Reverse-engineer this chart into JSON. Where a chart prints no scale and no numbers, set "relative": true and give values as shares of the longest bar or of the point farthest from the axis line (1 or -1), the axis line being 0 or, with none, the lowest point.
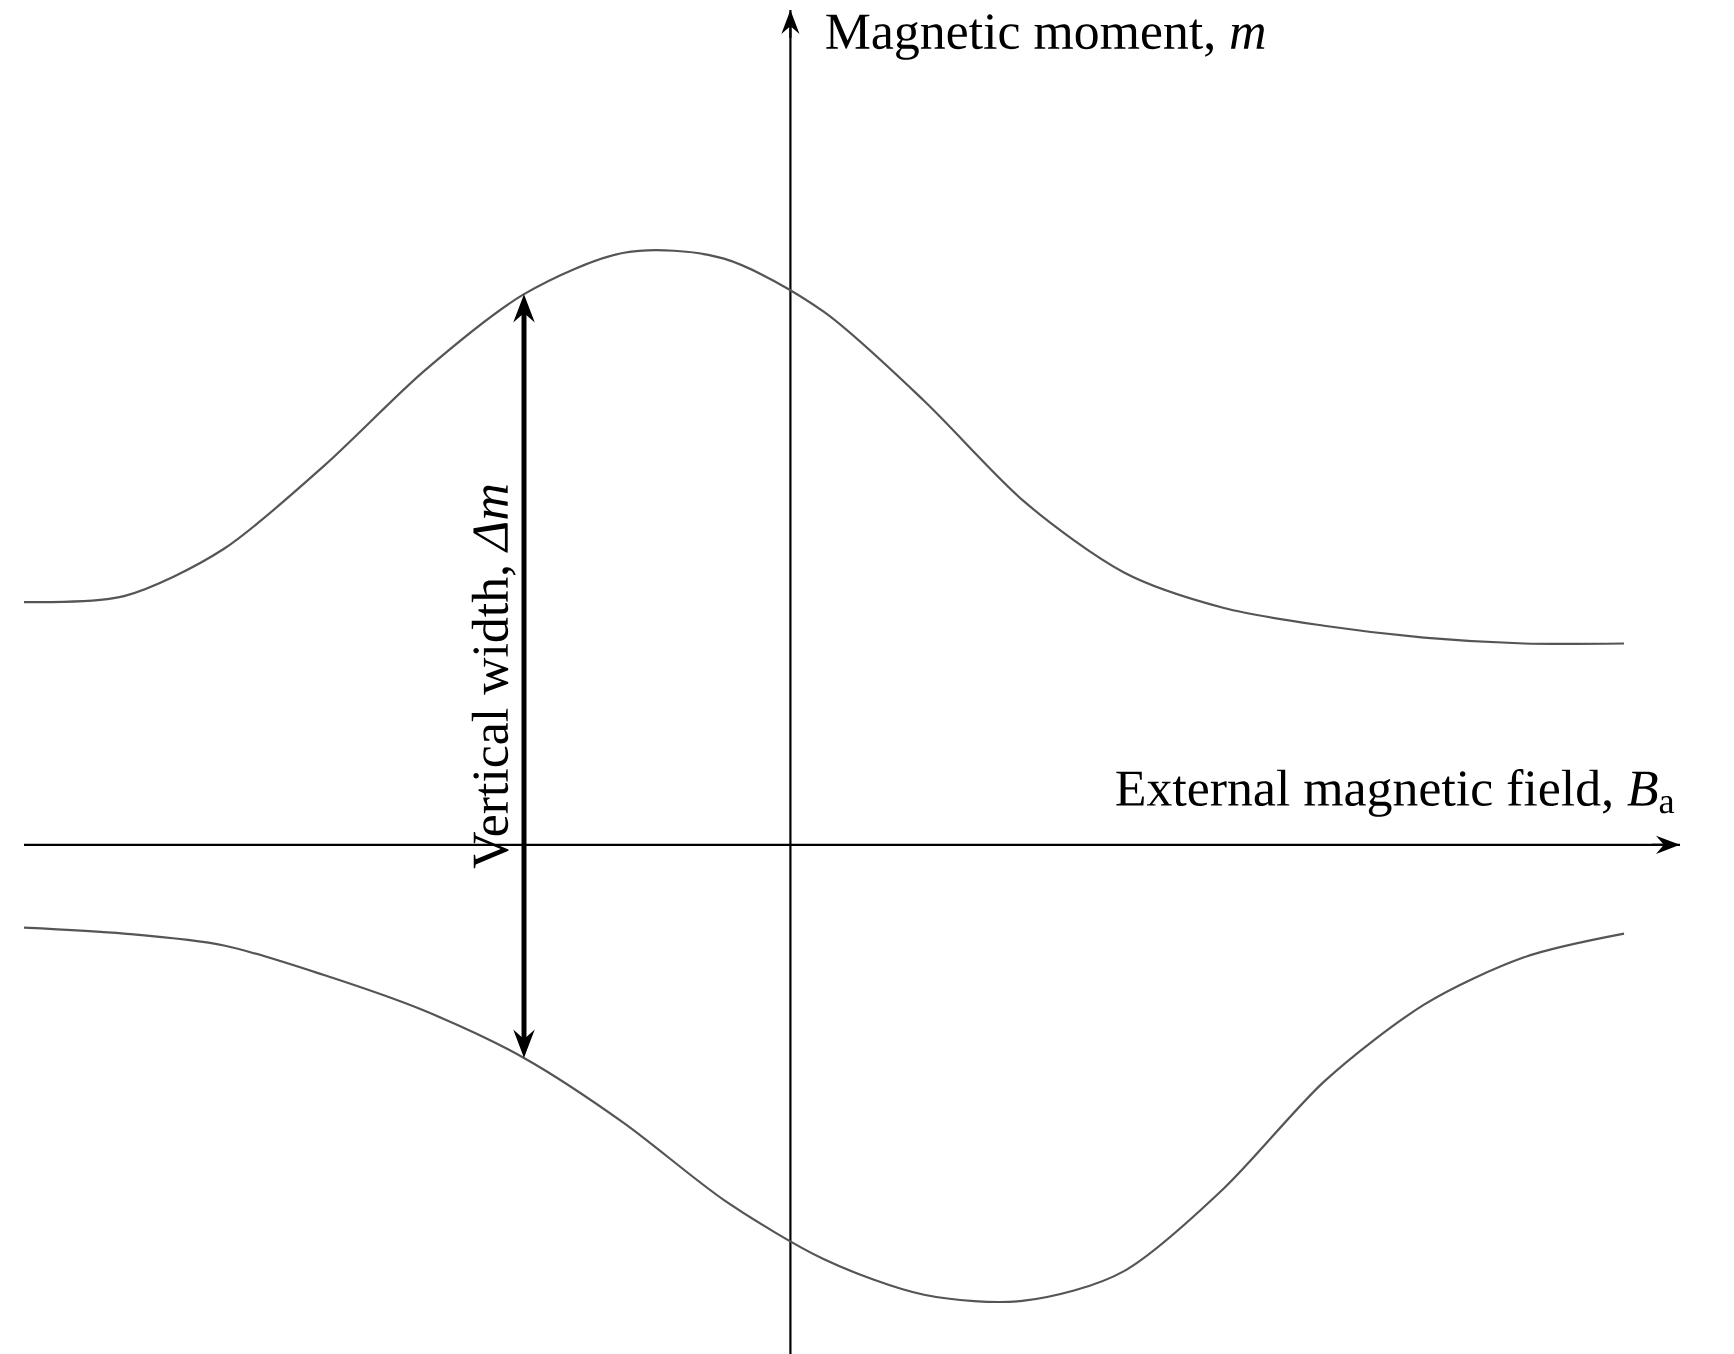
{
  "chart_data": {
    "type": "line",
    "relative": true,
    "xlabel": "External magnetic field, *B*$_{a}$",
    "ylabel": "Magnetic moment, *m*",
    "annotations": [
      "Vertical width, *Δm*"
    ],
    "marker": "none",
    "line_style": "solid",
    "categories": [
      null,
      null,
      null,
      null,
      null,
      null,
      null,
      null,
      null,
      null,
      null,
      null,
      null,
      null,
      null,
      null,
      null
    ],
    "series": [
      {
        "color": "#555555",
        "values": [
          0.41,
          0.42,
          0.5,
          0.64,
          0.8,
          0.93,
          1,
          0.99,
          0.9,
          0.75,
          0.58,
          0.46,
          0.4,
          0.37,
          0.35,
          0.34,
          0.34
        ]
      },
      {
        "color": "#555555",
        "values": [
          -0.14,
          -0.15,
          -0.17,
          -0.22,
          -0.28,
          -0.36,
          -0.47,
          -0.6,
          -0.7,
          -0.76,
          -0.77,
          -0.72,
          -0.58,
          -0.4,
          -0.27,
          -0.19,
          -0.15
        ]
      }
    ]
  }
}
